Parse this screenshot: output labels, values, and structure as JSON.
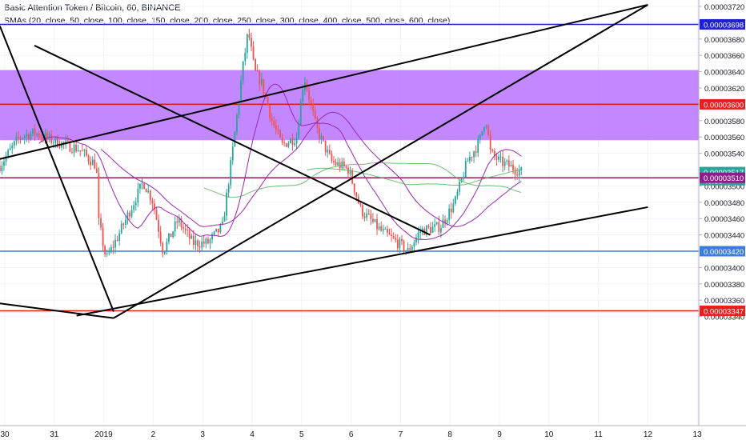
{
  "header": {
    "title": "Basic Attention Token / Bitcoin, 60, BINANCE",
    "indicator": "SMAs (20, close, 50, close, 100, close, 150, close, 200, close, 250, close, 300, close, 400, close, 500, close, 600, close)"
  },
  "chart_data": {
    "type": "candlestick",
    "x_ticks": [
      "30",
      "31",
      "2019",
      "2",
      "3",
      "4",
      "5",
      "6",
      "7",
      "8",
      "9",
      "10",
      "11",
      "12",
      "13"
    ],
    "y_ticks": [
      "0.00003720",
      "0.00003700",
      "0.00003680",
      "0.00003660",
      "0.00003640",
      "0.00003620",
      "0.00003600",
      "0.00003580",
      "0.00003560",
      "0.00003540",
      "0.00003520",
      "0.00003500",
      "0.00003480",
      "0.00003460",
      "0.00003440",
      "0.00003420",
      "0.00003400",
      "0.00003380",
      "0.00003360",
      "0.00003340"
    ],
    "ylim": [
      3.338e-05,
      3.722e-05
    ],
    "candle_window": [
      -0.1,
      10.45
    ],
    "price_tags": [
      {
        "label": "0.00003698",
        "value": 3.698e-05,
        "color": "#1f1fd4"
      },
      {
        "label": "0.00003600",
        "value": 3.6e-05,
        "color": "#e91e1e"
      },
      {
        "label": "0.00003517",
        "value": 3.517e-05,
        "color": "#26a69a"
      },
      {
        "label": "40:38",
        "value": 3.507e-05,
        "color": "#26a69a"
      },
      {
        "label": "0.00003510",
        "value": 3.51e-05,
        "color": "#8e1e8e"
      },
      {
        "label": "0.00003420",
        "value": 3.42e-05,
        "color": "#3b7ddd"
      },
      {
        "label": "0.00003347",
        "value": 3.347e-05,
        "color": "#e91e1e"
      }
    ],
    "horizontal_levels": [
      {
        "value": 3.698e-05,
        "color": "#1f1fd4"
      },
      {
        "value": 3.6e-05,
        "color": "#cc1a1a"
      },
      {
        "value": 3.51e-05,
        "color": "#8e1e5e"
      },
      {
        "value": 3.42e-05,
        "color": "#3b7ddd"
      },
      {
        "value": 3.347e-05,
        "color": "#e91e1e"
      }
    ],
    "zone": {
      "from": 3.556e-05,
      "to": 3.642e-05,
      "color": "#b266ff"
    },
    "trend_lines": [
      {
        "x1": -0.1,
        "y1": 3.696e-05,
        "x2": 2.2,
        "y2": 3.346e-05
      },
      {
        "x1": -0.1,
        "y1": 3.356e-05,
        "x2": 2.2,
        "y2": 3.338e-05
      },
      {
        "x1": -0.1,
        "y1": 3.533e-05,
        "x2": 13.0,
        "y2": 3.722e-05
      },
      {
        "x1": 1.45,
        "y1": 3.341e-05,
        "x2": 13.0,
        "y2": 3.474e-05
      },
      {
        "x1": 2.2,
        "y1": 3.338e-05,
        "x2": 13.0,
        "y2": 3.722e-05
      },
      {
        "x1": 0.6,
        "y1": 3.672e-05,
        "x2": 8.6,
        "y2": 3.44e-05
      }
    ],
    "colors": {
      "up": "#26a69a",
      "down": "#ef5350",
      "background": "#ffffff",
      "grid": "#f0f3fa"
    }
  }
}
